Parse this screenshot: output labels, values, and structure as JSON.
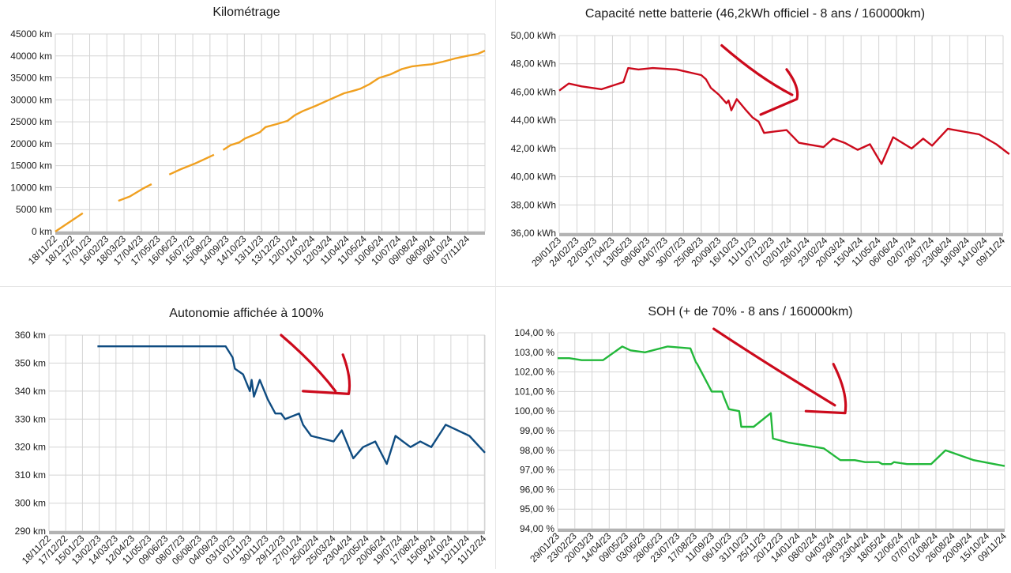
{
  "chart_data": [
    {
      "type": "line",
      "title": "Kilométrage",
      "color": "#f0a020",
      "ylim": [
        0,
        45000
      ],
      "yticks": [
        0,
        5000,
        10000,
        15000,
        20000,
        25000,
        30000,
        35000,
        40000,
        45000
      ],
      "yunit": " km",
      "ydecimals": 0,
      "xlim": [
        "2022-11-18",
        "2024-12-07"
      ],
      "xticks": [
        "18/11/22",
        "18/12/22",
        "17/01/23",
        "16/02/23",
        "18/03/23",
        "17/04/23",
        "17/05/23",
        "16/06/23",
        "16/07/23",
        "15/08/23",
        "14/09/23",
        "14/10/23",
        "13/11/23",
        "13/12/23",
        "12/01/24",
        "11/02/24",
        "12/03/24",
        "11/04/24",
        "11/05/24",
        "10/06/24",
        "10/07/24",
        "09/08/24",
        "08/09/24",
        "08/10/24",
        "07/11/24"
      ],
      "segments": [
        [
          [
            "2022-11-18",
            0
          ],
          [
            "2023-01-05",
            4200
          ]
        ],
        [
          [
            "2023-03-08",
            7000
          ],
          [
            "2023-03-28",
            8000
          ],
          [
            "2023-04-20",
            9800
          ],
          [
            "2023-05-05",
            10800
          ]
        ],
        [
          [
            "2023-06-05",
            13000
          ],
          [
            "2023-06-25",
            14200
          ],
          [
            "2023-07-20",
            15500
          ],
          [
            "2023-08-22",
            17500
          ]
        ],
        [
          [
            "2023-09-07",
            18600
          ],
          [
            "2023-09-20",
            19700
          ],
          [
            "2023-10-05",
            20300
          ],
          [
            "2023-10-15",
            21200
          ],
          [
            "2023-10-30",
            22000
          ],
          [
            "2023-11-10",
            22600
          ],
          [
            "2023-11-20",
            23800
          ],
          [
            "2023-12-10",
            24500
          ],
          [
            "2023-12-28",
            25200
          ],
          [
            "2024-01-10",
            26500
          ],
          [
            "2024-01-25",
            27500
          ],
          [
            "2024-02-15",
            28600
          ],
          [
            "2024-03-10",
            30000
          ],
          [
            "2024-04-05",
            31500
          ],
          [
            "2024-04-20",
            32000
          ],
          [
            "2024-05-03",
            32500
          ],
          [
            "2024-05-20",
            33600
          ],
          [
            "2024-06-05",
            35000
          ],
          [
            "2024-06-25",
            35800
          ],
          [
            "2024-07-15",
            37000
          ],
          [
            "2024-08-01",
            37600
          ],
          [
            "2024-08-20",
            37900
          ],
          [
            "2024-09-05",
            38100
          ],
          [
            "2024-09-25",
            38700
          ],
          [
            "2024-10-15",
            39400
          ],
          [
            "2024-11-05",
            40000
          ],
          [
            "2024-11-25",
            40500
          ],
          [
            "2024-12-07",
            41200
          ]
        ]
      ]
    },
    {
      "type": "line",
      "title": "Capacité nette batterie (46,2kWh officiel - 8 ans / 160000km)",
      "color": "#cc0a1c",
      "ylim": [
        36,
        50
      ],
      "yticks": [
        36,
        38,
        40,
        42,
        44,
        46,
        48,
        50
      ],
      "yunit": " kWh",
      "ydecimals": 2,
      "xlim": [
        "2023-01-29",
        "2024-11-09"
      ],
      "xticks": [
        "29/01/23",
        "24/02/23",
        "22/03/23",
        "17/04/23",
        "13/05/23",
        "08/06/23",
        "04/07/23",
        "30/07/23",
        "25/08/23",
        "20/09/23",
        "16/10/23",
        "11/11/23",
        "07/12/23",
        "02/01/24",
        "28/01/24",
        "23/02/24",
        "20/03/24",
        "15/04/24",
        "11/05/24",
        "06/06/24",
        "02/07/24",
        "28/07/24",
        "23/08/24",
        "18/09/24",
        "14/10/24",
        "09/11/24"
      ],
      "segments": [
        [
          [
            "2023-01-29",
            46.1
          ],
          [
            "2023-02-12",
            46.6
          ],
          [
            "2023-03-03",
            46.4
          ],
          [
            "2023-04-01",
            46.2
          ],
          [
            "2023-05-03",
            46.7
          ],
          [
            "2023-05-10",
            47.7
          ],
          [
            "2023-05-25",
            47.6
          ],
          [
            "2023-06-15",
            47.7
          ],
          [
            "2023-07-20",
            47.6
          ],
          [
            "2023-08-25",
            47.2
          ],
          [
            "2023-09-01",
            46.9
          ],
          [
            "2023-09-08",
            46.3
          ],
          [
            "2023-09-20",
            45.8
          ],
          [
            "2023-10-01",
            45.2
          ],
          [
            "2023-10-04",
            45.4
          ],
          [
            "2023-10-08",
            44.7
          ],
          [
            "2023-10-16",
            45.5
          ],
          [
            "2023-10-28",
            44.8
          ],
          [
            "2023-11-08",
            44.2
          ],
          [
            "2023-11-17",
            43.9
          ],
          [
            "2023-11-25",
            43.1
          ],
          [
            "2023-12-10",
            43.2
          ],
          [
            "2023-12-28",
            43.3
          ],
          [
            "2024-01-15",
            42.4
          ],
          [
            "2024-02-20",
            42.1
          ],
          [
            "2024-03-05",
            42.7
          ],
          [
            "2024-03-22",
            42.4
          ],
          [
            "2024-04-10",
            41.9
          ],
          [
            "2024-04-28",
            42.3
          ],
          [
            "2024-05-15",
            40.9
          ],
          [
            "2024-06-01",
            42.8
          ],
          [
            "2024-06-28",
            42.0
          ],
          [
            "2024-07-15",
            42.7
          ],
          [
            "2024-07-28",
            42.2
          ],
          [
            "2024-08-20",
            43.4
          ],
          [
            "2024-10-05",
            43.0
          ],
          [
            "2024-10-30",
            42.3
          ],
          [
            "2024-11-18",
            41.6
          ]
        ]
      ],
      "annotation": {
        "type": "arrow",
        "color": "#cc0a1c",
        "points": [
          [
            "2023-09-24",
            49.3
          ],
          [
            "2023-11-18",
            47.0
          ],
          [
            "2024-01-05",
            45.8
          ]
        ],
        "head": [
          [
            "2023-12-28",
            47.6
          ],
          [
            "2024-01-12",
            45.5
          ],
          [
            "2023-11-20",
            44.4
          ]
        ]
      }
    },
    {
      "type": "line",
      "title": "Autonomie affichée à 100%",
      "color": "#0f4c81",
      "ylim": [
        290,
        360
      ],
      "yticks": [
        290,
        300,
        310,
        320,
        330,
        340,
        350,
        360
      ],
      "yunit": " km",
      "ydecimals": 0,
      "xlim": [
        "2022-11-18",
        "2024-12-12"
      ],
      "xticks": [
        "18/11/22",
        "17/12/22",
        "15/01/23",
        "13/02/23",
        "14/03/23",
        "12/04/23",
        "11/05/23",
        "09/06/23",
        "08/07/23",
        "06/08/23",
        "04/09/23",
        "03/10/23",
        "01/11/23",
        "30/11/23",
        "29/12/23",
        "27/01/24",
        "25/02/24",
        "25/03/24",
        "23/04/24",
        "22/05/24",
        "20/06/24",
        "19/07/24",
        "17/08/24",
        "15/09/24",
        "14/10/24",
        "12/11/24",
        "11/12/24"
      ],
      "segments": [
        [
          [
            "2023-02-10",
            356
          ],
          [
            "2023-09-20",
            356
          ],
          [
            "2023-10-02",
            352
          ],
          [
            "2023-10-06",
            348
          ],
          [
            "2023-10-20",
            346
          ],
          [
            "2023-11-01",
            340
          ],
          [
            "2023-11-04",
            344
          ],
          [
            "2023-11-08",
            338
          ],
          [
            "2023-11-18",
            344
          ],
          [
            "2023-12-02",
            337
          ],
          [
            "2023-12-15",
            332
          ],
          [
            "2023-12-25",
            332
          ],
          [
            "2024-01-01",
            330
          ],
          [
            "2024-01-25",
            332
          ],
          [
            "2024-02-01",
            328
          ],
          [
            "2024-02-15",
            324
          ],
          [
            "2024-03-25",
            322
          ],
          [
            "2024-04-08",
            326
          ],
          [
            "2024-04-28",
            316
          ],
          [
            "2024-05-15",
            320
          ],
          [
            "2024-06-05",
            322
          ],
          [
            "2024-06-15",
            318
          ],
          [
            "2024-06-25",
            314
          ],
          [
            "2024-07-10",
            324
          ],
          [
            "2024-08-05",
            320
          ],
          [
            "2024-08-22",
            322
          ],
          [
            "2024-09-10",
            320
          ],
          [
            "2024-10-05",
            328
          ],
          [
            "2024-11-15",
            324
          ],
          [
            "2024-12-12",
            318
          ]
        ]
      ],
      "annotation": {
        "type": "arrow",
        "color": "#cc0a1c",
        "points": [
          [
            "2023-12-25",
            360
          ],
          [
            "2024-02-20",
            350
          ],
          [
            "2024-03-28",
            340
          ]
        ],
        "head": [
          [
            "2024-04-10",
            353
          ],
          [
            "2024-04-20",
            339
          ],
          [
            "2024-02-01",
            340
          ]
        ]
      }
    },
    {
      "type": "line",
      "title": "SOH (+ de 70% - 8 ans / 160000km)",
      "color": "#22b83a",
      "ylim": [
        94,
        104
      ],
      "yticks": [
        94,
        95,
        96,
        97,
        98,
        99,
        100,
        101,
        102,
        103,
        104
      ],
      "yunit": " %",
      "ydecimals": 2,
      "xlim": [
        "2023-01-29",
        "2024-11-09"
      ],
      "xticks": [
        "29/01/23",
        "23/02/23",
        "20/03/23",
        "14/04/23",
        "09/05/23",
        "03/06/23",
        "28/06/23",
        "23/07/23",
        "17/08/23",
        "11/09/23",
        "06/10/23",
        "31/10/23",
        "25/11/23",
        "20/12/23",
        "14/01/24",
        "08/02/24",
        "04/03/24",
        "29/03/24",
        "23/04/24",
        "18/05/24",
        "12/06/24",
        "07/07/24",
        "01/08/24",
        "26/08/24",
        "20/09/24",
        "15/10/24",
        "09/11/24"
      ],
      "segments": [
        [
          [
            "2023-01-29",
            102.7
          ],
          [
            "2023-02-15",
            102.7
          ],
          [
            "2023-03-05",
            102.6
          ],
          [
            "2023-04-05",
            102.6
          ],
          [
            "2023-05-03",
            103.3
          ],
          [
            "2023-05-15",
            103.1
          ],
          [
            "2023-06-05",
            103.0
          ],
          [
            "2023-07-08",
            103.3
          ],
          [
            "2023-08-10",
            103.2
          ],
          [
            "2023-08-18",
            102.5
          ],
          [
            "2023-08-20",
            102.4
          ],
          [
            "2023-09-10",
            101.0
          ],
          [
            "2023-09-25",
            101.0
          ],
          [
            "2023-09-28",
            100.7
          ],
          [
            "2023-10-05",
            100.1
          ],
          [
            "2023-10-20",
            100.0
          ],
          [
            "2023-10-23",
            99.2
          ],
          [
            "2023-11-10",
            99.2
          ],
          [
            "2023-12-05",
            99.9
          ],
          [
            "2023-12-08",
            98.6
          ],
          [
            "2023-12-30",
            98.4
          ],
          [
            "2024-02-20",
            98.1
          ],
          [
            "2024-03-15",
            97.5
          ],
          [
            "2024-04-05",
            97.5
          ],
          [
            "2024-04-20",
            97.4
          ],
          [
            "2024-05-10",
            97.4
          ],
          [
            "2024-05-15",
            97.3
          ],
          [
            "2024-05-28",
            97.3
          ],
          [
            "2024-06-01",
            97.4
          ],
          [
            "2024-06-20",
            97.3
          ],
          [
            "2024-07-25",
            97.3
          ],
          [
            "2024-08-15",
            98.0
          ],
          [
            "2024-09-25",
            97.5
          ],
          [
            "2024-10-25",
            97.3
          ],
          [
            "2024-11-09",
            97.2
          ]
        ]
      ],
      "annotation": {
        "type": "arrow",
        "color": "#cc0a1c",
        "points": [
          [
            "2023-09-13",
            104.2
          ],
          [
            "2023-11-25",
            102.5
          ],
          [
            "2024-03-07",
            100.3
          ]
        ],
        "head": [
          [
            "2024-03-05",
            102.4
          ],
          [
            "2024-03-22",
            99.9
          ],
          [
            "2024-01-25",
            100.0
          ]
        ]
      }
    }
  ]
}
